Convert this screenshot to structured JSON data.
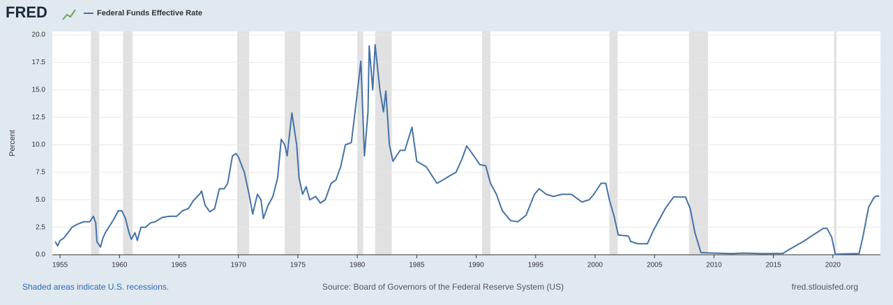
{
  "logo": "FRED",
  "chart_data": {
    "type": "line",
    "y_label": "Percent",
    "x": [
      1954.6,
      1954.8,
      1955.0,
      1955.3,
      1955.8,
      1956.0,
      1956.5,
      1957.0,
      1957.5,
      1957.8,
      1958.0,
      1958.1,
      1958.4,
      1958.6,
      1958.8,
      1959.1,
      1959.5,
      1959.9,
      1960.2,
      1960.5,
      1960.8,
      1961.0,
      1961.3,
      1961.5,
      1961.8,
      1962.2,
      1962.6,
      1963.0,
      1963.6,
      1964.2,
      1964.8,
      1965.3,
      1965.8,
      1966.2,
      1966.8,
      1966.9,
      1967.2,
      1967.6,
      1968.0,
      1968.4,
      1968.8,
      1969.1,
      1969.5,
      1969.8,
      1970.0,
      1970.5,
      1970.9,
      1971.2,
      1971.6,
      1971.9,
      1972.1,
      1972.5,
      1972.9,
      1973.3,
      1973.6,
      1973.9,
      1974.1,
      1974.5,
      1974.9,
      1975.1,
      1975.4,
      1975.7,
      1976.0,
      1976.5,
      1976.9,
      1977.3,
      1977.8,
      1978.2,
      1978.6,
      1979.0,
      1979.5,
      1979.9,
      1980.3,
      1980.6,
      1980.9,
      1981.0,
      1981.3,
      1981.5,
      1981.9,
      1982.2,
      1982.4,
      1982.7,
      1983.0,
      1983.6,
      1984.0,
      1984.6,
      1985.0,
      1985.8,
      1986.7,
      1987.2,
      1987.8,
      1988.3,
      1988.8,
      1989.2,
      1989.8,
      1990.3,
      1990.8,
      1991.2,
      1991.7,
      1992.2,
      1992.9,
      1993.5,
      1994.2,
      1994.9,
      1995.3,
      1995.9,
      1996.5,
      1997.2,
      1998.0,
      1998.9,
      1999.5,
      1999.9,
      2000.5,
      2000.9,
      2001.2,
      2001.6,
      2001.95,
      2002.8,
      2003.0,
      2003.6,
      2004.4,
      2004.9,
      2005.9,
      2006.6,
      2007.6,
      2008.0,
      2008.4,
      2008.9,
      2010.0,
      2011.5,
      2012.5,
      2014.0,
      2015.8,
      2016.2,
      2017.5,
      2019.2,
      2019.5,
      2019.9,
      2020.2,
      2021.0,
      2022.2,
      2022.5,
      2023.0,
      2023.4,
      2023.6,
      2023.9
    ],
    "series": [
      {
        "name": "Federal Funds Effective Rate",
        "color": "#4572a7",
        "values": [
          1.2,
          0.8,
          1.3,
          1.5,
          2.2,
          2.5,
          2.8,
          3.0,
          3.0,
          3.5,
          2.9,
          1.2,
          0.7,
          1.5,
          2.0,
          2.5,
          3.2,
          4.0,
          4.0,
          3.3,
          2.0,
          1.4,
          2.0,
          1.3,
          2.5,
          2.5,
          2.9,
          3.0,
          3.4,
          3.5,
          3.5,
          4.0,
          4.2,
          4.9,
          5.6,
          5.8,
          4.5,
          3.9,
          4.2,
          6.0,
          6.0,
          6.5,
          9.0,
          9.2,
          8.9,
          7.5,
          5.5,
          3.7,
          5.5,
          5.0,
          3.3,
          4.5,
          5.3,
          7.0,
          10.5,
          10.0,
          9.0,
          12.9,
          10.0,
          7.0,
          5.5,
          6.2,
          5.0,
          5.3,
          4.7,
          5.0,
          6.5,
          6.8,
          8.0,
          10.0,
          10.2,
          13.8,
          17.6,
          9.0,
          13.0,
          19.0,
          15.0,
          19.1,
          15.0,
          13.0,
          14.9,
          10.0,
          8.5,
          9.5,
          9.5,
          11.6,
          8.5,
          8.0,
          6.5,
          6.8,
          7.2,
          7.5,
          8.7,
          9.9,
          9.0,
          8.2,
          8.1,
          6.5,
          5.5,
          4.0,
          3.1,
          3.0,
          3.6,
          5.5,
          6.0,
          5.5,
          5.3,
          5.5,
          5.5,
          4.8,
          5.0,
          5.5,
          6.5,
          6.5,
          5.0,
          3.5,
          1.8,
          1.7,
          1.2,
          1.0,
          1.0,
          2.2,
          4.2,
          5.25,
          5.25,
          4.2,
          2.0,
          0.2,
          0.15,
          0.1,
          0.15,
          0.1,
          0.12,
          0.4,
          1.2,
          2.4,
          2.4,
          1.6,
          0.05,
          0.08,
          0.1,
          1.5,
          4.3,
          5.1,
          5.33,
          5.33
        ]
      }
    ],
    "recessions": [
      [
        1957.6,
        1958.3
      ],
      [
        1960.3,
        1961.1
      ],
      [
        1969.9,
        1970.9
      ],
      [
        1973.9,
        1975.2
      ],
      [
        1980.0,
        1980.5
      ],
      [
        1981.5,
        1982.9
      ],
      [
        1990.5,
        1991.2
      ],
      [
        2001.2,
        2001.9
      ],
      [
        2007.9,
        2009.5
      ],
      [
        2020.1,
        2020.3
      ]
    ],
    "xlim": [
      1954.35,
      2024.0
    ],
    "ylim": [
      0,
      20
    ],
    "xticks": [
      1955,
      1960,
      1965,
      1970,
      1975,
      1980,
      1985,
      1990,
      1995,
      2000,
      2005,
      2010,
      2015,
      2020
    ],
    "yticks": [
      {
        "value": 0,
        "label": "0.0"
      },
      2.5,
      {
        "value": 5,
        "label": "5.0"
      },
      7.5,
      {
        "value": 10,
        "label": "10.0"
      },
      12.5,
      {
        "value": 15,
        "label": "15.0"
      },
      17.5,
      {
        "value": 20,
        "label": "20.0"
      }
    ],
    "grid": true,
    "note": "Shaded areas indicate U.S. recessions.",
    "source": "Source: Board of Governors of the Federal Reserve System (US)",
    "site": "fred.stlouisfed.org"
  }
}
